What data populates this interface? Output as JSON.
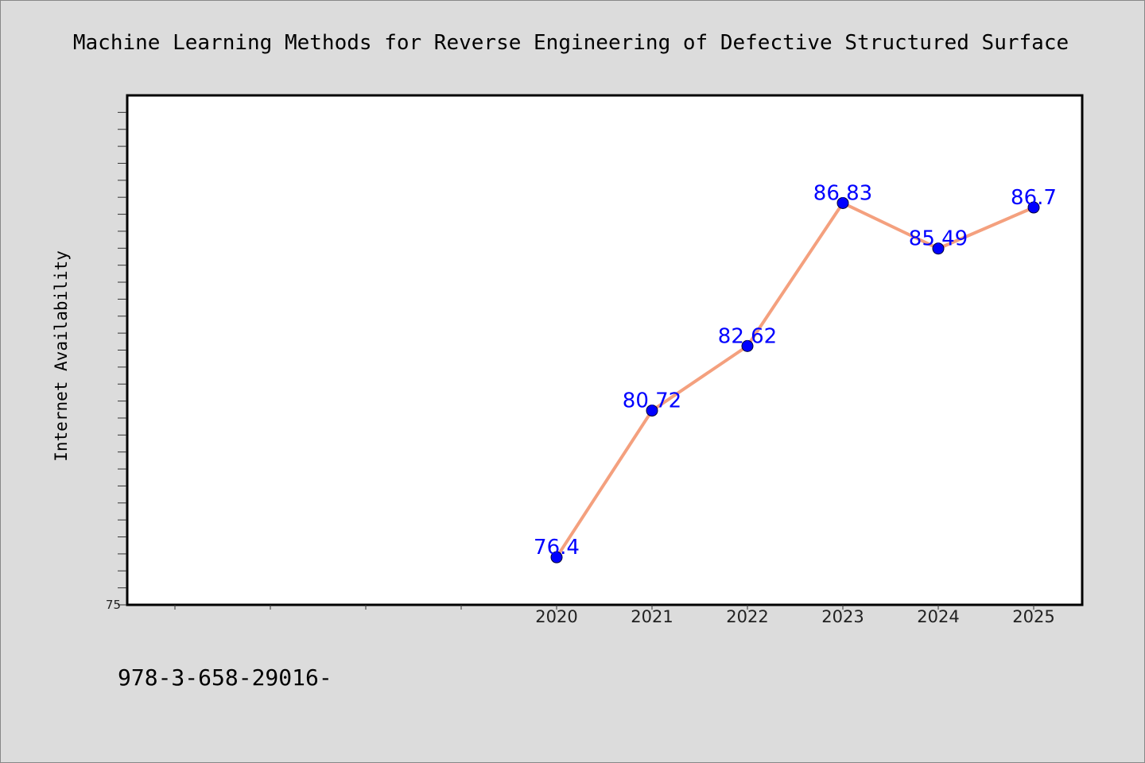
{
  "chart_data": {
    "type": "line",
    "title": "Machine Learning Methods for Reverse Engineering of Defective Structured Surface",
    "xlabel": "",
    "ylabel": "Internet Availability",
    "x": [
      "2020",
      "2021",
      "2022",
      "2023",
      "2024",
      "2025"
    ],
    "values": [
      76.4,
      80.72,
      82.62,
      86.83,
      85.49,
      86.7
    ],
    "data_labels": [
      "76.4",
      "80.72",
      "82.62",
      "86.83",
      "85.49",
      "86.7"
    ],
    "ylim": [
      75,
      90
    ],
    "yticks_labeled": [
      "75"
    ],
    "grid": false,
    "line_color": "#f4a07e",
    "marker_color": "#0000ff",
    "label_color": "#0000ff"
  },
  "footer": {
    "text": "978-3-658-29016-"
  }
}
